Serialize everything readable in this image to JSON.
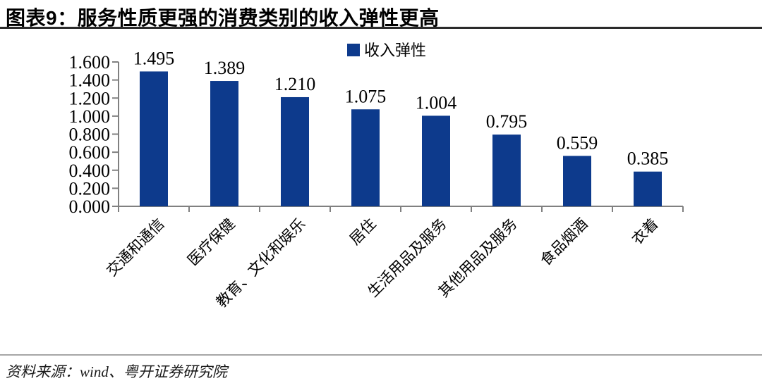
{
  "title": "图表9：服务性质更强的消费类别的收入弹性更高",
  "source": "资料来源：wind、粤开证券研究院",
  "colors": {
    "bar": "#0d3a8c",
    "axis": "#808080",
    "label_text": "#000000",
    "title_rule": "#2b2b2b",
    "source_rule": "#a6a6a6"
  },
  "chart_data": {
    "type": "bar",
    "title": "图表9：服务性质更强的消费类别的收入弹性更高",
    "legend": [
      "收入弹性"
    ],
    "legend_position": "top-center",
    "categories": [
      "交通和通信",
      "医疗保健",
      "教育、文化和娱乐",
      "居住",
      "生活用品及服务",
      "其他用品及服务",
      "食品烟酒",
      "衣着"
    ],
    "values": [
      1.495,
      1.389,
      1.21,
      1.075,
      1.004,
      0.795,
      0.559,
      0.385
    ],
    "value_labels": [
      "1.495",
      "1.389",
      "1.210",
      "1.075",
      "1.004",
      "0.795",
      "0.559",
      "0.385"
    ],
    "xlabel": "",
    "ylabel": "",
    "ylim": [
      0.0,
      1.6
    ],
    "ytick_step": 0.2,
    "ytick_labels": [
      "0.000",
      "0.200",
      "0.400",
      "0.600",
      "0.800",
      "1.000",
      "1.200",
      "1.400",
      "1.600"
    ],
    "grid": false,
    "category_label_rotation_deg": -45
  }
}
